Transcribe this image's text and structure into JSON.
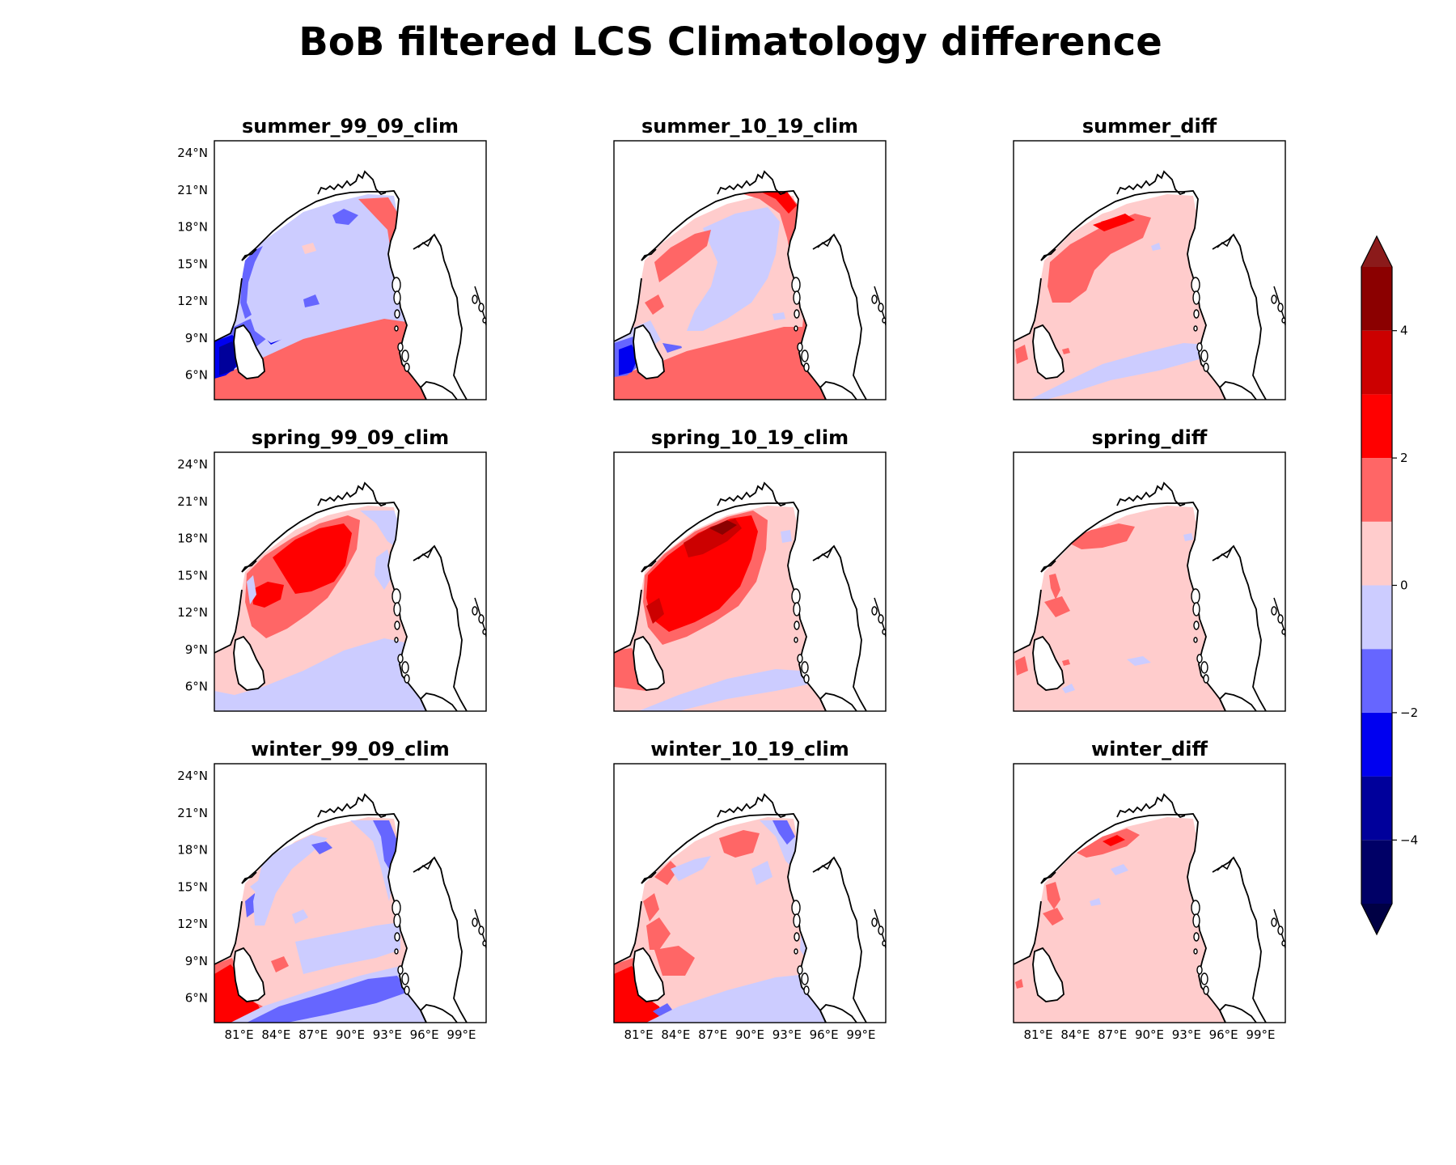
{
  "figure": {
    "title": "BoB filtered LCS Climatology difference"
  },
  "panels": [
    {
      "title": "summer_99_09_clim",
      "key": "s1"
    },
    {
      "title": "summer_10_19_clim",
      "key": "s2"
    },
    {
      "title": "summer_diff",
      "key": "sd"
    },
    {
      "title": "spring_99_09_clim",
      "key": "p1"
    },
    {
      "title": "spring_10_19_clim",
      "key": "p2"
    },
    {
      "title": "spring_diff",
      "key": "pd"
    },
    {
      "title": "winter_99_09_clim",
      "key": "w1"
    },
    {
      "title": "winter_10_19_clim",
      "key": "w2"
    },
    {
      "title": "winter_diff",
      "key": "wd"
    }
  ],
  "axes": {
    "lon_ticks": [
      "81°E",
      "84°E",
      "87°E",
      "90°E",
      "93°E",
      "96°E",
      "99°E"
    ],
    "lat_ticks": [
      "24°N",
      "21°N",
      "18°N",
      "15°N",
      "12°N",
      "9°N",
      "6°N"
    ],
    "lon_range": [
      79,
      101
    ],
    "lat_range": [
      4,
      25
    ]
  },
  "colorbar": {
    "ticks": [
      "4",
      "2",
      "0",
      "−2",
      "−4"
    ],
    "tick_values": [
      4,
      2,
      0,
      -2,
      -4
    ],
    "range": [
      -5,
      5
    ],
    "extend": "both",
    "levels": [
      {
        "from": -5,
        "to": -4,
        "color": "#000066"
      },
      {
        "from": -4,
        "to": -3,
        "color": "#00009b"
      },
      {
        "from": -3,
        "to": -2,
        "color": "#0000f0"
      },
      {
        "from": -2,
        "to": -1,
        "color": "#6666ff"
      },
      {
        "from": -1,
        "to": 0,
        "color": "#ccccff"
      },
      {
        "from": 0,
        "to": 1,
        "color": "#ffcccc"
      },
      {
        "from": 1,
        "to": 2,
        "color": "#ff6666"
      },
      {
        "from": 2,
        "to": 3,
        "color": "#ff0000"
      },
      {
        "from": 3,
        "to": 4,
        "color": "#cc0000"
      },
      {
        "from": 4,
        "to": 5,
        "color": "#8b0000"
      }
    ],
    "under_color": "#000044",
    "over_color": "#8b1a1a"
  },
  "colors": {
    "neg4": "#00009b",
    "neg3": "#0000f0",
    "neg2": "#6666ff",
    "neg1": "#ccccff",
    "pos1": "#ffcccc",
    "pos2": "#ff6666",
    "pos3": "#ff0000",
    "pos4": "#cc0000",
    "pos5": "#8b0000"
  }
}
